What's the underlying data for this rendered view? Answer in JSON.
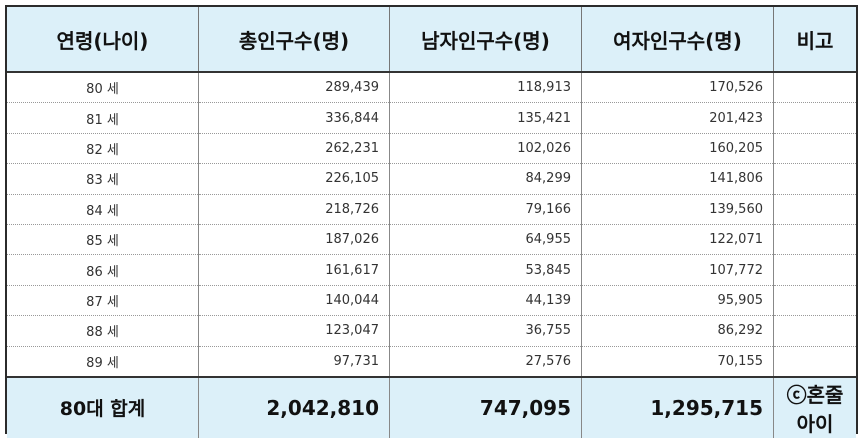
{
  "table": {
    "headers": [
      "연령(나이)",
      "총인구수(명)",
      "남자인구수(명)",
      "여자인구수(명)",
      "비고"
    ],
    "rows": [
      {
        "age": "80 세",
        "total": "289,439",
        "male": "118,913",
        "female": "170,526",
        "note": ""
      },
      {
        "age": "81 세",
        "total": "336,844",
        "male": "135,421",
        "female": "201,423",
        "note": ""
      },
      {
        "age": "82 세",
        "total": "262,231",
        "male": "102,026",
        "female": "160,205",
        "note": ""
      },
      {
        "age": "83 세",
        "total": "226,105",
        "male": "84,299",
        "female": "141,806",
        "note": ""
      },
      {
        "age": "84 세",
        "total": "218,726",
        "male": "79,166",
        "female": "139,560",
        "note": ""
      },
      {
        "age": "85 세",
        "total": "187,026",
        "male": "64,955",
        "female": "122,071",
        "note": ""
      },
      {
        "age": "86 세",
        "total": "161,617",
        "male": "53,845",
        "female": "107,772",
        "note": ""
      },
      {
        "age": "87 세",
        "total": "140,044",
        "male": "44,139",
        "female": "95,905",
        "note": ""
      },
      {
        "age": "88 세",
        "total": "123,047",
        "male": "36,755",
        "female": "86,292",
        "note": ""
      },
      {
        "age": "89 세",
        "total": "97,731",
        "male": "27,576",
        "female": "70,155",
        "note": ""
      }
    ],
    "total_row": {
      "age": "80대 합계",
      "total": "2,042,810",
      "male": "747,095",
      "female": "1,295,715",
      "note": "ⓒ혼줄아이"
    }
  }
}
